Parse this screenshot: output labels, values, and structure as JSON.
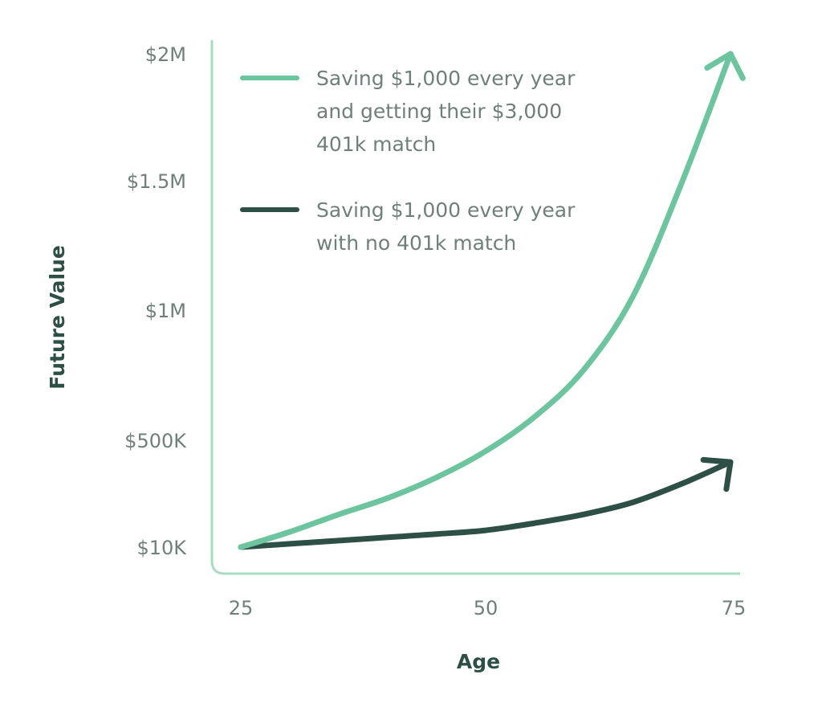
{
  "chart_data": {
    "type": "line",
    "title": "",
    "xlabel": "Age",
    "ylabel": "Future Value",
    "x_ticks": [
      25,
      50,
      75
    ],
    "x_tick_labels": [
      "25",
      "50",
      "75"
    ],
    "y_ticks": [
      10000,
      500000,
      1000000,
      1500000,
      2000000
    ],
    "y_tick_labels": [
      "$10K",
      "$500K",
      "$1M",
      "$1.5M",
      "$2M"
    ],
    "xlim": [
      25,
      75
    ],
    "ylim": [
      10000,
      2000000
    ],
    "grid": false,
    "legend_placement": "top-left",
    "x": [
      25,
      30,
      35,
      40,
      45,
      50,
      55,
      60,
      65,
      70,
      75
    ],
    "series": [
      {
        "name": "Saving $1,000 every year and getting their $3,000 401k match",
        "name_lines": [
          "Saving $1,000 every year",
          "and getting their $3,000",
          "401k match"
        ],
        "color": "#6cc59e",
        "values": [
          10000,
          80000,
          160000,
          235000,
          330000,
          450000,
          590000,
          770000,
          1050000,
          1490000,
          2000000
        ]
      },
      {
        "name": "Saving $1,000 every year with no 401k match",
        "name_lines": [
          "Saving $1,000 every year",
          "with no 401k match"
        ],
        "color": "#2d4f46",
        "values": [
          10000,
          25000,
          40000,
          55000,
          70000,
          87000,
          120000,
          160000,
          215000,
          300000,
          400000
        ]
      }
    ],
    "axis_color": "#a8dcc4",
    "end_markers": "arrow"
  }
}
